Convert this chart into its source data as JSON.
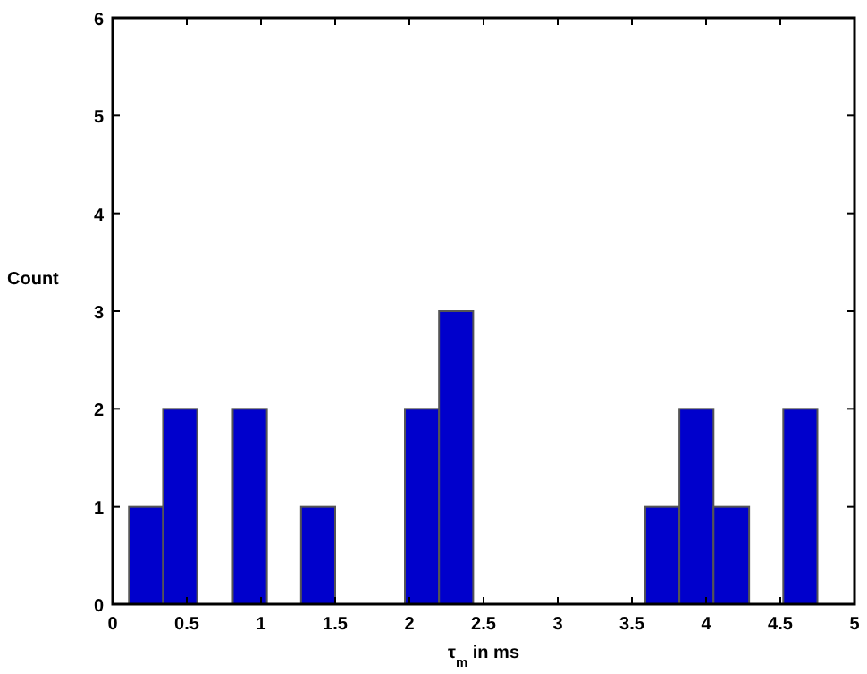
{
  "chart_data": {
    "type": "histogram",
    "xlabel": "τ$_{m}$ in ms",
    "ylabel": "Count",
    "bins": [
      0.11,
      0.34,
      0.57,
      0.81,
      1.04,
      1.27,
      1.5,
      1.97,
      2.2,
      2.43,
      3.59,
      3.82,
      4.05,
      4.29,
      4.52,
      4.75
    ],
    "values": [
      1,
      2,
      0,
      2,
      0,
      1,
      0,
      2,
      3,
      0,
      1,
      2,
      1,
      0,
      2
    ],
    "color": "#0000cc",
    "xlim": [
      0,
      5
    ],
    "xticks": [
      0,
      0.5,
      1,
      1.5,
      2,
      2.5,
      3,
      3.5,
      4,
      4.5,
      5
    ],
    "ylim": [
      0,
      6
    ],
    "yticks": [
      0,
      1,
      2,
      3,
      4,
      5,
      6
    ],
    "grid": false
  }
}
